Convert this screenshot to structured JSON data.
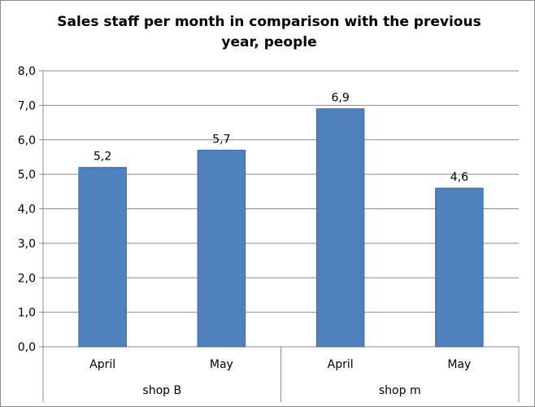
{
  "chart_data": {
    "type": "bar",
    "title": "Sales staff per month in comparison with the previous year, people",
    "groups": [
      {
        "label": "shop B",
        "categories": [
          "April",
          "May"
        ]
      },
      {
        "label": "shop m",
        "categories": [
          "April",
          "May"
        ]
      }
    ],
    "categories": [
      "April",
      "May",
      "April",
      "May"
    ],
    "values": [
      5.2,
      5.7,
      6.9,
      4.6
    ],
    "data_labels": [
      "5,2",
      "5,7",
      "6,9",
      "4,6"
    ],
    "ylim": [
      0,
      8
    ],
    "yticks": [
      0,
      1,
      2,
      3,
      4,
      5,
      6,
      7,
      8
    ],
    "ytick_labels": [
      "0,0",
      "1,0",
      "2,0",
      "3,0",
      "4,0",
      "5,0",
      "6,0",
      "7,0",
      "8,0"
    ],
    "grid": true,
    "legend": "none",
    "bar_color": "#4f81bd",
    "bar_edge_color": "#3a6aa6",
    "xlabel": "",
    "ylabel": ""
  }
}
